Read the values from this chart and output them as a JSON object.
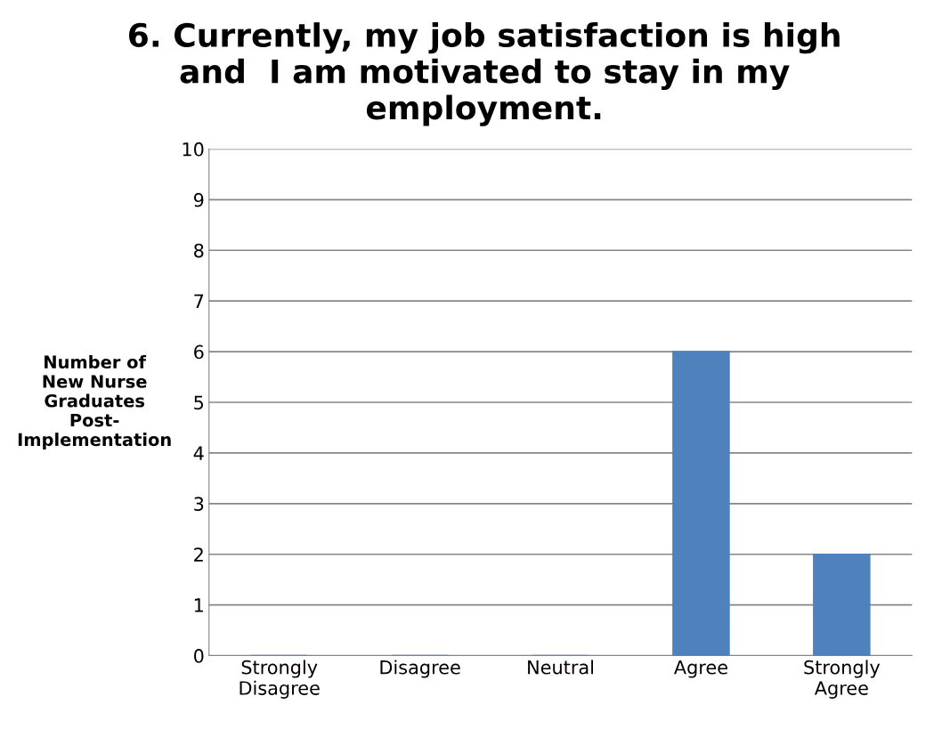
{
  "chart_data": {
    "type": "bar",
    "title": "6. Currently, my job satisfaction is high\nand  I am motivated to stay in my\nemployment.",
    "ylabel": "Number of\nNew Nurse\nGraduates\nPost-\nImplementation",
    "categories": [
      "Strongly\nDisagree",
      "Disagree",
      "Neutral",
      "Agree",
      "Strongly\nAgree"
    ],
    "values": [
      0,
      0,
      0,
      6,
      2
    ],
    "color": "#4f81bd",
    "ylim": [
      0,
      10
    ],
    "yticks": [
      0,
      1,
      2,
      3,
      4,
      5,
      6,
      7,
      8,
      9,
      10
    ],
    "grid": "y",
    "legend": false
  }
}
